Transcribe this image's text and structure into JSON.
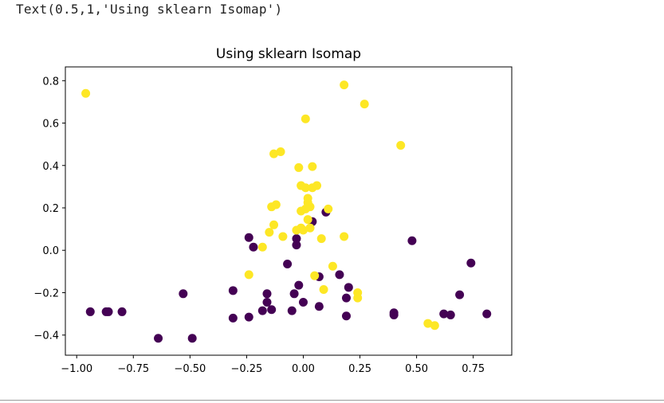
{
  "output": {
    "text": "Text(0.5,1,'Using sklearn Isomap')"
  },
  "chart_data": {
    "type": "scatter",
    "title": "Using sklearn Isomap",
    "xlabel": "",
    "ylabel": "",
    "xlim": [
      -1.05,
      0.92
    ],
    "ylim": [
      -0.495,
      0.865
    ],
    "x_ticks": [
      -1.0,
      -0.75,
      -0.5,
      -0.25,
      0.0,
      0.25,
      0.5,
      0.75
    ],
    "x_tick_labels": [
      "−1.00",
      "−0.75",
      "−0.50",
      "−0.25",
      "0.00",
      "0.25",
      "0.50",
      "0.75"
    ],
    "y_ticks": [
      -0.4,
      -0.2,
      0.0,
      0.2,
      0.4,
      0.6,
      0.8
    ],
    "y_tick_labels": [
      "−0.4",
      "−0.2",
      "0.0",
      "0.2",
      "0.4",
      "0.6",
      "0.8"
    ],
    "grid": false,
    "series": [
      {
        "color": "#440154",
        "points": [
          [
            -0.94,
            -0.29
          ],
          [
            -0.87,
            -0.29
          ],
          [
            -0.86,
            -0.29
          ],
          [
            -0.8,
            -0.29
          ],
          [
            -0.64,
            -0.415
          ],
          [
            -0.53,
            -0.205
          ],
          [
            -0.49,
            -0.415
          ],
          [
            -0.31,
            -0.19
          ],
          [
            -0.31,
            -0.32
          ],
          [
            -0.24,
            -0.315
          ],
          [
            -0.24,
            0.06
          ],
          [
            -0.22,
            0.015
          ],
          [
            -0.18,
            -0.285
          ],
          [
            -0.16,
            -0.205
          ],
          [
            -0.16,
            -0.245
          ],
          [
            -0.14,
            -0.28
          ],
          [
            -0.07,
            -0.065
          ],
          [
            -0.05,
            -0.285
          ],
          [
            -0.04,
            -0.205
          ],
          [
            -0.03,
            0.025
          ],
          [
            -0.03,
            0.055
          ],
          [
            -0.02,
            -0.165
          ],
          [
            0.0,
            -0.245
          ],
          [
            0.04,
            0.135
          ],
          [
            0.07,
            -0.125
          ],
          [
            0.07,
            -0.265
          ],
          [
            0.1,
            0.18
          ],
          [
            0.16,
            -0.115
          ],
          [
            0.19,
            -0.31
          ],
          [
            0.19,
            -0.225
          ],
          [
            0.2,
            -0.175
          ],
          [
            0.4,
            -0.305
          ],
          [
            0.4,
            -0.295
          ],
          [
            0.48,
            0.045
          ],
          [
            0.62,
            -0.3
          ],
          [
            0.65,
            -0.305
          ],
          [
            0.69,
            -0.21
          ],
          [
            0.74,
            -0.06
          ],
          [
            0.81,
            -0.3
          ]
        ]
      },
      {
        "color": "#fde725",
        "points": [
          [
            -0.96,
            0.74
          ],
          [
            0.18,
            0.78
          ],
          [
            0.27,
            0.69
          ],
          [
            0.43,
            0.495
          ],
          [
            0.01,
            0.62
          ],
          [
            -0.13,
            0.455
          ],
          [
            -0.1,
            0.465
          ],
          [
            -0.02,
            0.39
          ],
          [
            0.04,
            0.395
          ],
          [
            -0.01,
            0.305
          ],
          [
            0.01,
            0.295
          ],
          [
            0.04,
            0.295
          ],
          [
            0.06,
            0.305
          ],
          [
            0.02,
            0.245
          ],
          [
            0.02,
            0.225
          ],
          [
            0.03,
            0.205
          ],
          [
            -0.14,
            0.205
          ],
          [
            -0.12,
            0.215
          ],
          [
            -0.01,
            0.185
          ],
          [
            0.01,
            0.195
          ],
          [
            0.11,
            0.195
          ],
          [
            -0.13,
            0.12
          ],
          [
            0.02,
            0.145
          ],
          [
            -0.15,
            0.085
          ],
          [
            -0.09,
            0.065
          ],
          [
            -0.03,
            0.095
          ],
          [
            -0.01,
            0.105
          ],
          [
            0.0,
            0.095
          ],
          [
            0.03,
            0.105
          ],
          [
            0.08,
            0.055
          ],
          [
            0.18,
            0.065
          ],
          [
            -0.18,
            0.015
          ],
          [
            -0.24,
            -0.115
          ],
          [
            0.05,
            -0.12
          ],
          [
            0.13,
            -0.075
          ],
          [
            0.09,
            -0.185
          ],
          [
            0.24,
            -0.2
          ],
          [
            0.24,
            -0.225
          ],
          [
            0.55,
            -0.345
          ],
          [
            0.58,
            -0.355
          ]
        ]
      }
    ]
  }
}
